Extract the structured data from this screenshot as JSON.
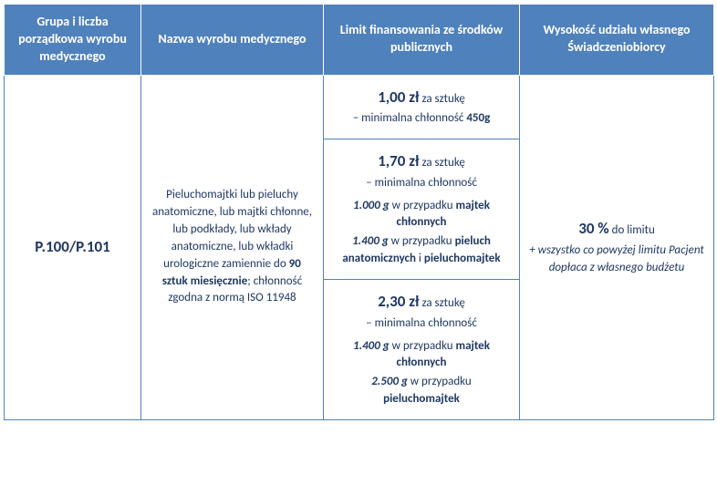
{
  "colors": {
    "header_bg": "#4f81bd",
    "header_text": "#ffffff",
    "cell_border": "#4f81bd",
    "cell_text": "#1f3864",
    "body_bg": "#ffffff"
  },
  "fonts": {
    "family": "Calibri",
    "header_size_pt": 10.5,
    "body_size_pt": 10,
    "emphasis_size_pt": 13
  },
  "headers": {
    "col1": "Grupa i liczba porządkowa wyrobu medycznego",
    "col2": "Nazwa wyrobu medycznego",
    "col3": "Limit finansowania ze środków publicznych",
    "col4": "Wysokość udziału własnego Świadczeniobiorcy"
  },
  "group_code": "P.100/P.101",
  "product_desc": {
    "line1": "Pieluchomajtki lub pieluchy anatomiczne, lub majtki chłonne, lub podkłady, lub wkłady anatomiczne, lub wkładki urologiczne zamiennie do ",
    "line1_bold": "90 sztuk miesięcznie",
    "line2": "; chłonność zgodna z normą ISO 11948"
  },
  "tiers": [
    {
      "price": "1,00 zł",
      "per": " za sztukę",
      "sub": "– minimalna chłonność ",
      "sub_bold": "450g"
    },
    {
      "price": "1,70 zł",
      "per": " za sztukę",
      "sub": "– minimalna chłonność",
      "detail_a_val": "1.000 g",
      "detail_a_txt": " w przypadku ",
      "detail_a_item": "majtek chłonnych",
      "detail_b_val": "1.400 g",
      "detail_b_txt": " w przypadku ",
      "detail_b_item1": "pieluch anatomicznych",
      "detail_b_and": " i ",
      "detail_b_item2": "pieluchomajtek"
    },
    {
      "price": "2,30 zł",
      "per": " za sztukę",
      "sub": "– minimalna chłonność",
      "detail_a_val": "1.400 g",
      "detail_a_txt": " w przypadku ",
      "detail_a_item": "majtek chłonnych",
      "detail_b_val": "2.500 g",
      "detail_b_txt": " w przypadku ",
      "detail_b_item": "pieluchomajtek"
    }
  ],
  "share": {
    "percent": "30 %",
    "percent_txt": " do limitu",
    "note": "+ wszystko co powyżej limitu Pacjent dopłaca z własnego budżetu"
  }
}
